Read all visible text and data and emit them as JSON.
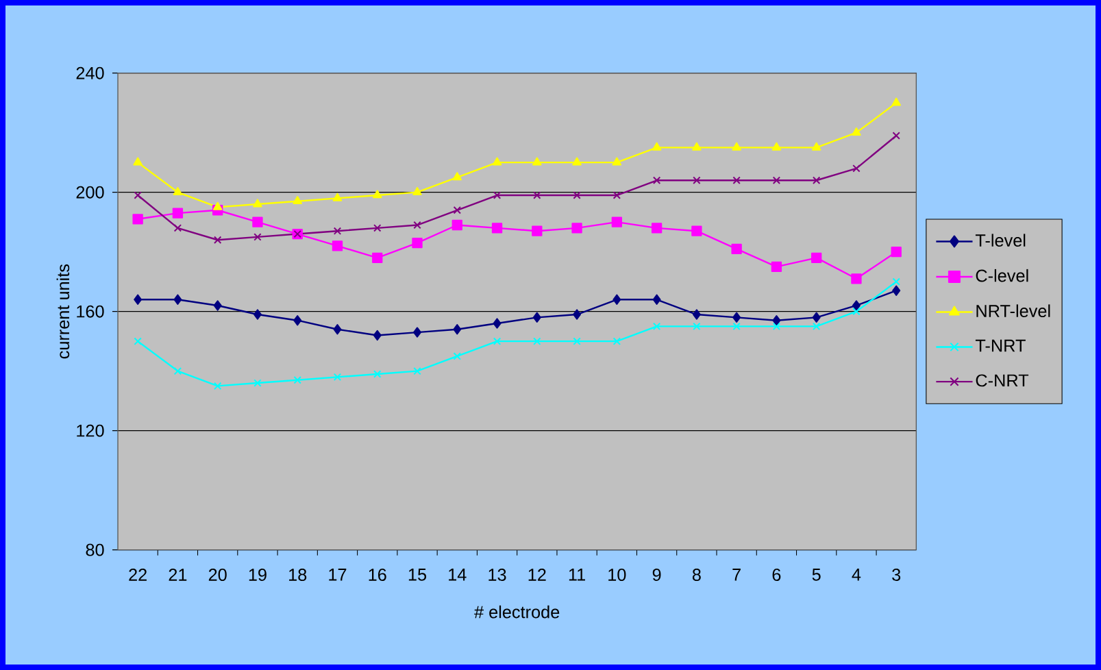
{
  "chart_data": {
    "type": "line",
    "xlabel": "# electrode",
    "ylabel": "current units",
    "categories": [
      "22",
      "21",
      "20",
      "19",
      "18",
      "17",
      "16",
      "15",
      "14",
      "13",
      "12",
      "11",
      "10",
      "9",
      "8",
      "7",
      "6",
      "5",
      "4",
      "3"
    ],
    "ylim": [
      80,
      240
    ],
    "yticks": [
      80,
      120,
      160,
      200,
      240
    ],
    "grid": "y",
    "legend": "right",
    "line_style": "solid",
    "series": [
      {
        "name": "T-level",
        "color": "#000080",
        "marker": "diamond",
        "values": [
          164,
          164,
          162,
          159,
          157,
          154,
          152,
          153,
          154,
          156,
          158,
          159,
          164,
          164,
          159,
          158,
          157,
          158,
          162,
          167
        ]
      },
      {
        "name": "C-level",
        "color": "#ff00ff",
        "marker": "square",
        "values": [
          191,
          193,
          194,
          190,
          186,
          182,
          178,
          183,
          189,
          188,
          187,
          188,
          190,
          188,
          187,
          181,
          175,
          178,
          171,
          180
        ]
      },
      {
        "name": "NRT-level",
        "color": "#ffff00",
        "marker": "triangle",
        "values": [
          210,
          200,
          195,
          196,
          197,
          198,
          199,
          200,
          205,
          210,
          210,
          210,
          210,
          215,
          215,
          215,
          215,
          215,
          220,
          230
        ]
      },
      {
        "name": "T-NRT",
        "color": "#00ffff",
        "marker": "cross",
        "values": [
          150,
          140,
          135,
          136,
          137,
          138,
          139,
          140,
          145,
          150,
          150,
          150,
          150,
          155,
          155,
          155,
          155,
          155,
          160,
          170
        ]
      },
      {
        "name": "C-NRT",
        "color": "#800080",
        "marker": "cross",
        "values": [
          199,
          188,
          184,
          185,
          186,
          187,
          188,
          189,
          194,
          199,
          199,
          199,
          199,
          204,
          204,
          204,
          204,
          204,
          208,
          219
        ]
      }
    ]
  }
}
